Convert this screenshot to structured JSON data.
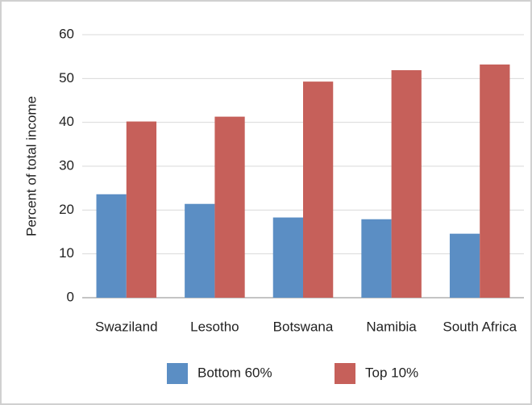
{
  "chart_data": {
    "type": "bar",
    "y_label": "Percent of total income",
    "categories": [
      "Swaziland",
      "Lesotho",
      "Botswana",
      "Namibia",
      "South Africa"
    ],
    "series": [
      {
        "name": "Bottom 60%",
        "color": "#5b8ec4",
        "values": [
          23.6,
          21.4,
          18.3,
          17.9,
          14.6
        ]
      },
      {
        "name": "Top 10%",
        "color": "#c6605a",
        "values": [
          40.2,
          41.3,
          49.3,
          51.9,
          53.2
        ]
      }
    ],
    "ylim": [
      0,
      60
    ],
    "yticks": [
      0,
      10,
      20,
      30,
      40,
      50,
      60
    ],
    "grid": true,
    "legend": "bottom"
  }
}
